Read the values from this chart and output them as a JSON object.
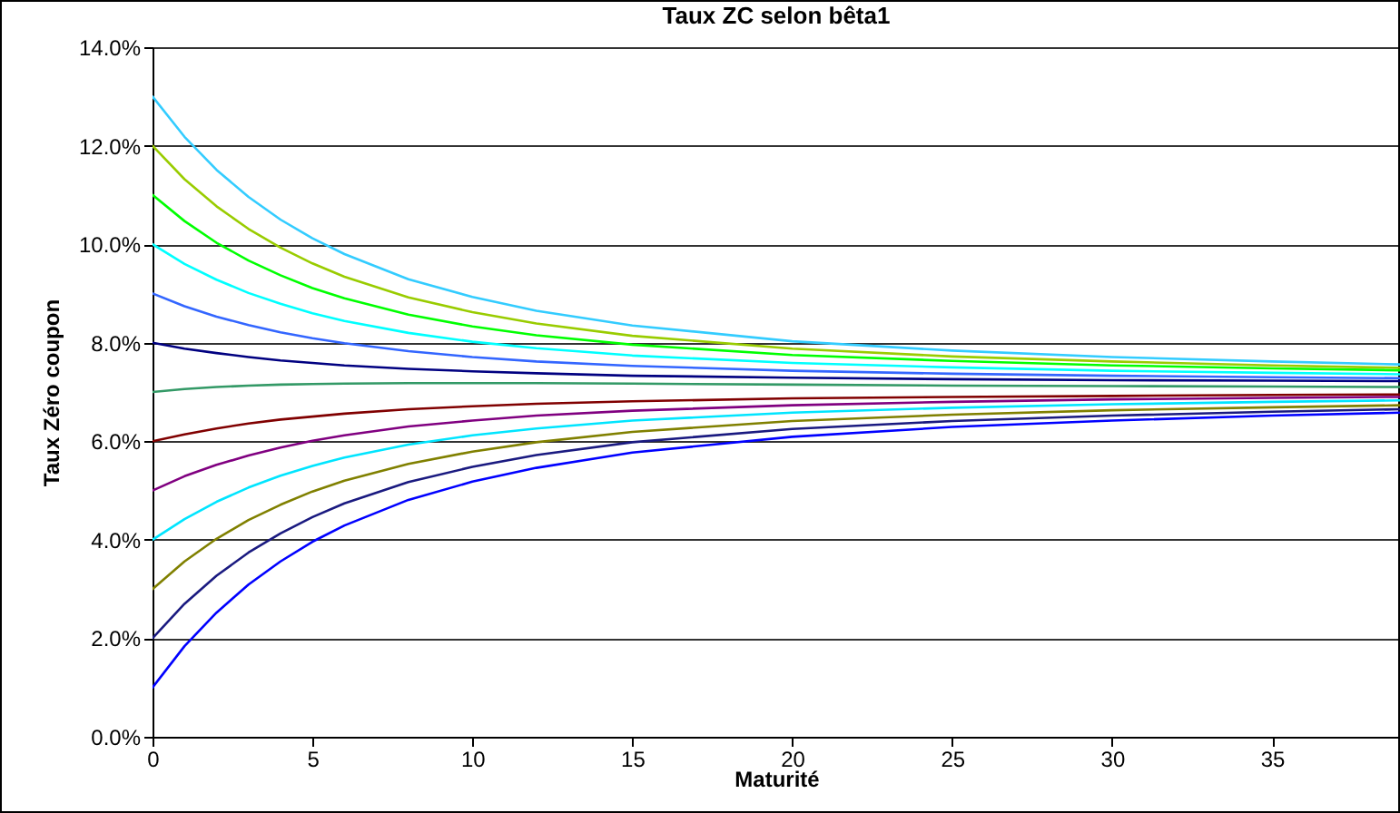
{
  "chart_data": {
    "type": "line",
    "title": "Taux ZC selon bêta1",
    "xlabel": "Maturité",
    "ylabel": "Taux Zéro coupon",
    "x": [
      0,
      1,
      2,
      3,
      4,
      5,
      6,
      8,
      10,
      12,
      15,
      20,
      25,
      30,
      35,
      39
    ],
    "series": [
      {
        "color": "#33ccff",
        "values": [
          13,
          12.18,
          11.51,
          10.96,
          10.5,
          10.12,
          9.8,
          9.29,
          8.93,
          8.65,
          8.35,
          8.03,
          7.84,
          7.71,
          7.62,
          7.56
        ]
      },
      {
        "color": "#99cc00",
        "values": [
          12,
          11.32,
          10.77,
          10.31,
          9.93,
          9.61,
          9.34,
          8.92,
          8.62,
          8.39,
          8.14,
          7.88,
          7.72,
          7.62,
          7.54,
          7.49
        ]
      },
      {
        "color": "#00ff00",
        "values": [
          11,
          10.47,
          10.03,
          9.67,
          9.37,
          9.11,
          8.9,
          8.57,
          8.33,
          8.15,
          7.96,
          7.75,
          7.63,
          7.54,
          7.48,
          7.44
        ]
      },
      {
        "color": "#00ffff",
        "values": [
          10,
          9.6,
          9.28,
          9.01,
          8.79,
          8.6,
          8.44,
          8.2,
          8.02,
          7.89,
          7.74,
          7.59,
          7.5,
          7.43,
          7.39,
          7.36
        ]
      },
      {
        "color": "#3366ff",
        "values": [
          9,
          8.74,
          8.53,
          8.36,
          8.21,
          8.09,
          7.99,
          7.83,
          7.71,
          7.62,
          7.53,
          7.43,
          7.37,
          7.33,
          7.3,
          7.28
        ]
      },
      {
        "color": "#000080",
        "values": [
          8,
          7.88,
          7.79,
          7.71,
          7.64,
          7.59,
          7.54,
          7.47,
          7.42,
          7.38,
          7.33,
          7.29,
          7.26,
          7.24,
          7.23,
          7.22
        ]
      },
      {
        "color": "#339966",
        "values": [
          7,
          7.06,
          7.1,
          7.13,
          7.15,
          7.16,
          7.17,
          7.18,
          7.18,
          7.18,
          7.17,
          7.15,
          7.13,
          7.12,
          7.11,
          7.1
        ]
      },
      {
        "color": "#800000",
        "values": [
          6,
          6.14,
          6.26,
          6.36,
          6.44,
          6.5,
          6.56,
          6.65,
          6.71,
          6.76,
          6.81,
          6.87,
          6.9,
          6.92,
          6.94,
          6.95
        ]
      },
      {
        "color": "#800080",
        "values": [
          5,
          5.29,
          5.52,
          5.71,
          5.87,
          6.01,
          6.12,
          6.3,
          6.42,
          6.52,
          6.62,
          6.73,
          6.8,
          6.85,
          6.88,
          6.9
        ]
      },
      {
        "color": "#00e5ff",
        "values": [
          4,
          4.42,
          4.77,
          5.06,
          5.3,
          5.5,
          5.67,
          5.93,
          6.12,
          6.26,
          6.42,
          6.58,
          6.68,
          6.75,
          6.8,
          6.83
        ]
      },
      {
        "color": "#808000",
        "values": [
          3,
          3.56,
          4.02,
          4.4,
          4.71,
          4.98,
          5.2,
          5.54,
          5.79,
          5.98,
          6.19,
          6.41,
          6.54,
          6.63,
          6.69,
          6.73
        ]
      },
      {
        "color": "#1a1a80",
        "values": [
          2,
          2.7,
          3.27,
          3.74,
          4.13,
          4.46,
          4.74,
          5.17,
          5.48,
          5.72,
          5.98,
          6.25,
          6.41,
          6.52,
          6.6,
          6.65
        ]
      },
      {
        "color": "#0000ff",
        "values": [
          1,
          1.84,
          2.52,
          3.09,
          3.56,
          3.96,
          4.29,
          4.81,
          5.18,
          5.46,
          5.77,
          6.09,
          6.29,
          6.42,
          6.52,
          6.58
        ]
      }
    ],
    "xlim": [
      0,
      39
    ],
    "xticks": [
      0,
      5,
      10,
      15,
      20,
      25,
      30,
      35
    ],
    "ylim": [
      0,
      14
    ],
    "yticks": [
      {
        "value": 0,
        "label": "0.0%"
      },
      {
        "value": 2,
        "label": "2.0%"
      },
      {
        "value": 4,
        "label": "4.0%"
      },
      {
        "value": 6,
        "label": "6.0%"
      },
      {
        "value": 8,
        "label": "8.0%"
      },
      {
        "value": 10,
        "label": "10.0%"
      },
      {
        "value": 12,
        "label": "12.0%"
      },
      {
        "value": 14,
        "label": "14.0%"
      }
    ],
    "grid": "y",
    "legend": false,
    "marker": "none",
    "line_style": "solid"
  }
}
